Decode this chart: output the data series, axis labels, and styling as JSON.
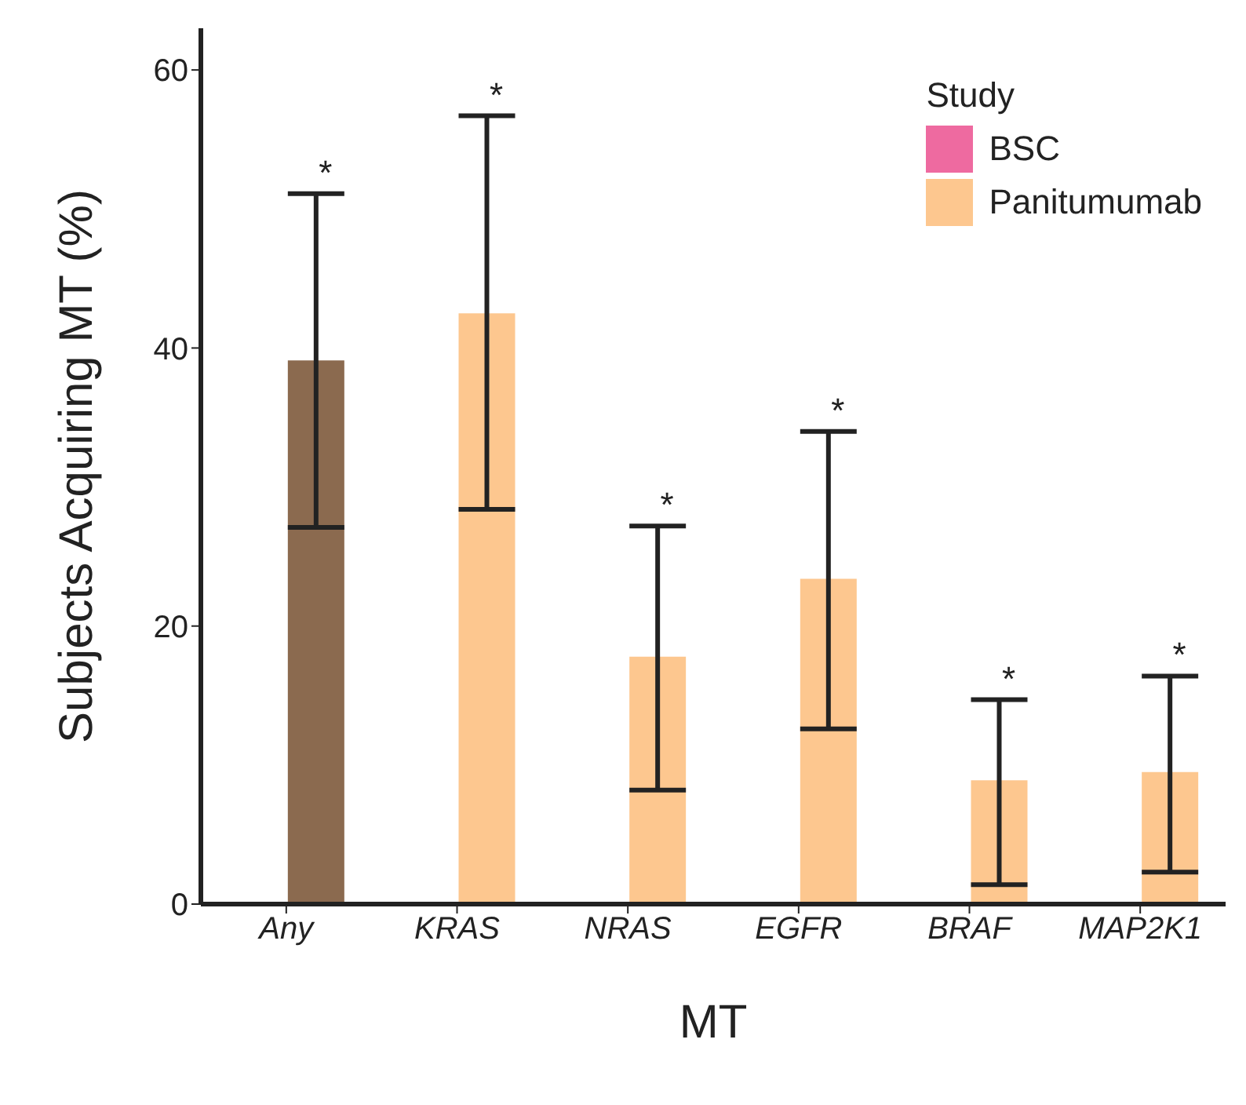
{
  "chart_data": {
    "type": "bar",
    "xlabel": "MT",
    "ylabel": "Subjects Acquiring MT (%)",
    "legend_title": "Study",
    "legend": "top right",
    "grid": false,
    "categories": [
      "Any",
      "KRAS",
      "NRAS",
      "EGFR",
      "BRAF",
      "MAP2K1"
    ],
    "ylim": [
      0,
      63
    ],
    "yticks": [
      0,
      20,
      40,
      60
    ],
    "series": [
      {
        "name": "BSC",
        "color": "#ee6aa0",
        "values": [
          0,
          0,
          0,
          0,
          0,
          0
        ],
        "errors": [
          [
            0,
            0
          ],
          [
            0,
            0
          ],
          [
            0,
            0
          ],
          [
            0,
            0
          ],
          [
            0,
            0
          ],
          [
            0,
            0
          ]
        ]
      },
      {
        "name": "Panitumumab",
        "color": "#fdc78f",
        "colors": [
          "#8b6a4f",
          "#fdc78f",
          "#fdc78f",
          "#fdc78f",
          "#fdc78f",
          "#fdc78f"
        ],
        "values": [
          39.1,
          42.5,
          17.8,
          23.4,
          8.9,
          9.5
        ],
        "errors": [
          [
            27.1,
            51.1
          ],
          [
            28.4,
            56.7
          ],
          [
            8.2,
            27.2
          ],
          [
            12.6,
            34
          ],
          [
            1.4,
            14.7
          ],
          [
            2.3,
            16.4
          ]
        ]
      }
    ],
    "annotations": [
      "*",
      "*",
      "*",
      "*",
      "*",
      "*"
    ]
  }
}
